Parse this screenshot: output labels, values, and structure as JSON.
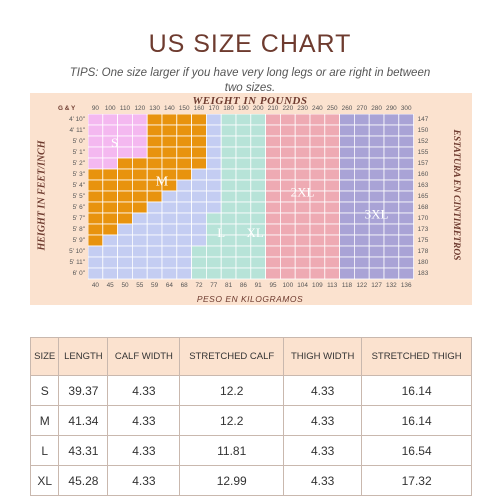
{
  "title": "US SIZE CHART",
  "tips": "TIPS: One size larger if you have very long legs or are right in between two sizes.",
  "chart": {
    "corner_label": "G & Y",
    "weight_header": "WEIGHT IN POUNDS",
    "height_label_left": "HEIGHT IN FEET/INCH",
    "height_label_right": "ESTATURA EN CINTIMETROS",
    "bottom_label": "PESO EN KILOGRAMOS",
    "pounds": [
      "90",
      "100",
      "110",
      "120",
      "130",
      "140",
      "150",
      "160",
      "170",
      "180",
      "190",
      "200",
      "210",
      "220",
      "230",
      "240",
      "250",
      "260",
      "270",
      "280",
      "290",
      "300"
    ],
    "kilograms": [
      "40",
      "45",
      "50",
      "55",
      "59",
      "64",
      "68",
      "72",
      "77",
      "81",
      "86",
      "91",
      "95",
      "100",
      "104",
      "109",
      "113",
      "118",
      "122",
      "127",
      "132",
      "136"
    ],
    "feet_inches": [
      "4' 10\"",
      "4' 11\"",
      "5' 0\"",
      "5' 1\"",
      "5' 2\"",
      "5' 3\"",
      "5' 4\"",
      "5' 5\"",
      "5' 6\"",
      "5' 7\"",
      "5' 8\"",
      "5' 9\"",
      "5' 10\"",
      "5' 11\"",
      "6' 0\""
    ],
    "centimeters": [
      "147",
      "150",
      "152",
      "155",
      "157",
      "160",
      "163",
      "165",
      "168",
      "170",
      "173",
      "175",
      "178",
      "180",
      "183"
    ],
    "size_labels": [
      "S",
      "M",
      "L",
      "XL",
      "2XL",
      "3XL"
    ],
    "colors": {
      "S": "#f4b8f0",
      "M": "#e8930e",
      "L": "#c4cdf2",
      "XL": "#b7e3d8",
      "2XL": "#eeaab3",
      "3XL": "#a9a3d6",
      "panel": "#fbe2cf",
      "title": "#6e3b2f"
    }
  },
  "table": {
    "headers": [
      "SIZE",
      "LENGTH",
      "CALF WIDTH",
      "STRETCHED CALF",
      "THIGH WIDTH",
      "STRETCHED THIGH"
    ],
    "rows": [
      [
        "S",
        "39.37",
        "4.33",
        "12.2",
        "4.33",
        "16.14"
      ],
      [
        "M",
        "41.34",
        "4.33",
        "12.2",
        "4.33",
        "16.14"
      ],
      [
        "L",
        "43.31",
        "4.33",
        "11.81",
        "4.33",
        "16.54"
      ],
      [
        "XL",
        "45.28",
        "4.33",
        "12.99",
        "4.33",
        "17.32"
      ]
    ]
  }
}
